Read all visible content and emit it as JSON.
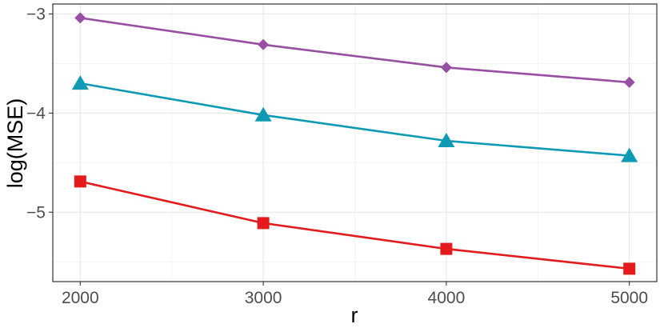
{
  "chart_data": {
    "type": "line",
    "title": "",
    "xlabel": "r",
    "ylabel": "log(MSE)",
    "x": [
      2000,
      3000,
      4000,
      5000
    ],
    "xticks": [
      "2000",
      "3000",
      "4000",
      "5000"
    ],
    "yticks": [
      "−5",
      "−4",
      "−3"
    ],
    "ytick_values": [
      -5,
      -4,
      -3
    ],
    "xlim": [
      1850,
      5150
    ],
    "ylim": [
      -5.7,
      -2.9
    ],
    "grid": true,
    "legend": "none",
    "series": [
      {
        "color": "#984EA3",
        "marker": "diamond",
        "values": [
          -3.04,
          -3.31,
          -3.54,
          -3.69
        ]
      },
      {
        "color": "#0E9AB5",
        "marker": "triangle",
        "values": [
          -3.7,
          -4.02,
          -4.28,
          -4.43
        ]
      },
      {
        "color": "#E41A1C",
        "marker": "square",
        "values": [
          -4.69,
          -5.11,
          -5.37,
          -5.57
        ]
      }
    ]
  }
}
